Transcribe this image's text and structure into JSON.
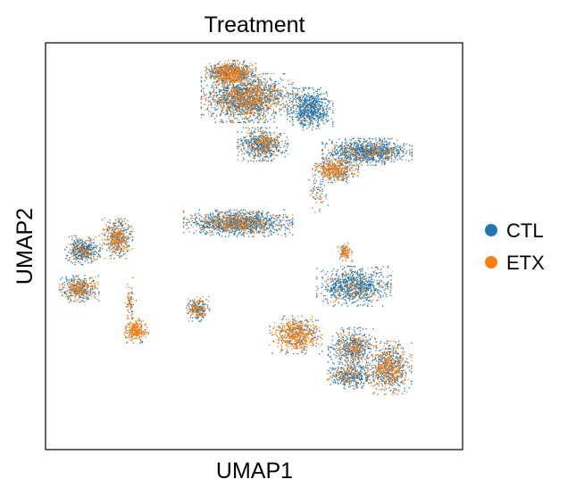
{
  "chart_data": {
    "type": "scatter",
    "title": "Treatment",
    "xlabel": "UMAP1",
    "ylabel": "UMAP2",
    "xlim": [
      -8,
      17
    ],
    "ylim": [
      -7,
      17
    ],
    "grid": false,
    "ticks": false,
    "legend_position": "right",
    "series": [
      {
        "name": "CTL",
        "color": "#1f77b4"
      },
      {
        "name": "ETX",
        "color": "#ff7f0e"
      }
    ],
    "clusters": [
      {
        "center": [
          3.05,
          15.35
        ],
        "spread": [
          1.15,
          0.55
        ],
        "etx_fraction": 0.5,
        "n": 900
      },
      {
        "center": [
          4.05,
          13.85
        ],
        "spread": [
          2.1,
          1.1
        ],
        "etx_fraction": 0.38,
        "n": 1900
      },
      {
        "center": [
          7.85,
          13.2
        ],
        "spread": [
          1.05,
          0.95
        ],
        "etx_fraction": 0.06,
        "n": 700
      },
      {
        "center": [
          5.0,
          11.1
        ],
        "spread": [
          1.15,
          0.75
        ],
        "etx_fraction": 0.3,
        "n": 700
      },
      {
        "center": [
          11.3,
          10.65
        ],
        "spread": [
          2.05,
          0.6
        ],
        "etx_fraction": 0.18,
        "n": 1100
      },
      {
        "center": [
          9.4,
          9.55
        ],
        "spread": [
          1.05,
          0.55
        ],
        "etx_fraction": 0.55,
        "n": 500
      },
      {
        "center": [
          3.5,
          6.4
        ],
        "spread": [
          2.5,
          0.6
        ],
        "etx_fraction": 0.26,
        "n": 1400
      },
      {
        "center": [
          -5.9,
          4.8
        ],
        "spread": [
          0.8,
          0.65
        ],
        "etx_fraction": 0.28,
        "n": 450
      },
      {
        "center": [
          -3.8,
          5.5
        ],
        "spread": [
          0.7,
          0.9
        ],
        "etx_fraction": 0.48,
        "n": 500
      },
      {
        "center": [
          -6.1,
          2.5
        ],
        "spread": [
          0.9,
          0.6
        ],
        "etx_fraction": 0.42,
        "n": 450
      },
      {
        "center": [
          -2.65,
          0.0
        ],
        "spread": [
          0.55,
          0.55
        ],
        "etx_fraction": 0.78,
        "n": 280
      },
      {
        "center": [
          1.05,
          1.3
        ],
        "spread": [
          0.55,
          0.55
        ],
        "etx_fraction": 0.38,
        "n": 280
      },
      {
        "center": [
          9.95,
          4.7
        ],
        "spread": [
          0.35,
          0.45
        ],
        "etx_fraction": 0.72,
        "n": 120
      },
      {
        "center": [
          10.5,
          2.65
        ],
        "spread": [
          1.7,
          0.9
        ],
        "etx_fraction": 0.14,
        "n": 900
      },
      {
        "center": [
          7.0,
          -0.25
        ],
        "spread": [
          1.2,
          0.85
        ],
        "etx_fraction": 0.68,
        "n": 650
      },
      {
        "center": [
          10.4,
          -1.0
        ],
        "spread": [
          1.1,
          0.9
        ],
        "etx_fraction": 0.3,
        "n": 600
      },
      {
        "center": [
          12.6,
          -2.2
        ],
        "spread": [
          1.05,
          1.2
        ],
        "etx_fraction": 0.46,
        "n": 800
      },
      {
        "center": [
          10.3,
          -2.65
        ],
        "spread": [
          1.05,
          0.6
        ],
        "etx_fraction": 0.28,
        "n": 450
      },
      {
        "center": [
          -3.0,
          1.7
        ],
        "spread": [
          0.25,
          1.1
        ],
        "etx_fraction": 0.55,
        "n": 80
      },
      {
        "center": [
          8.35,
          8.2
        ],
        "spread": [
          0.45,
          0.9
        ],
        "etx_fraction": 0.3,
        "n": 60
      }
    ]
  }
}
